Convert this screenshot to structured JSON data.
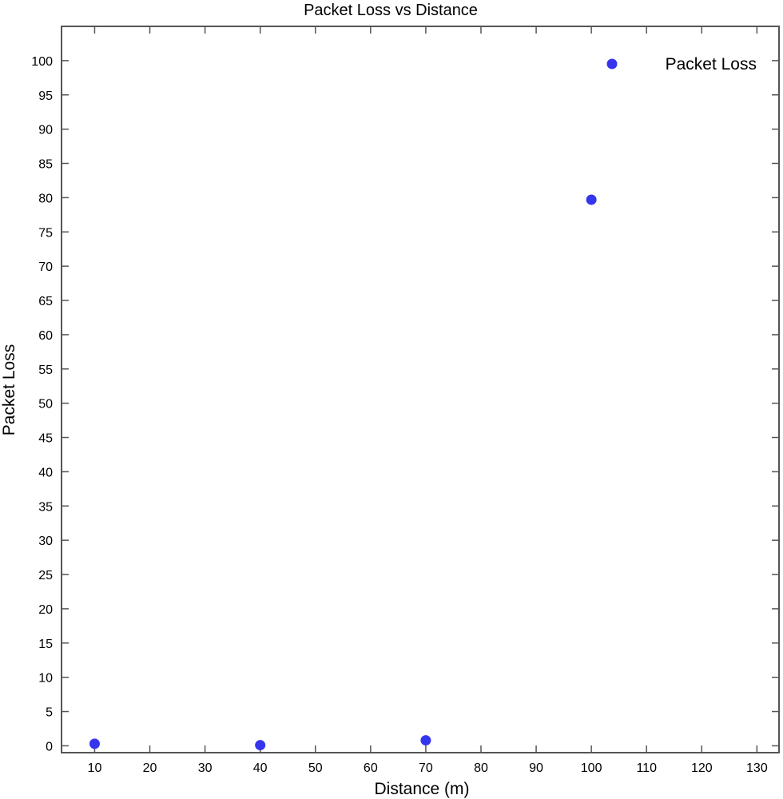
{
  "chart_data": {
    "type": "scatter",
    "title": "Packet Loss vs Distance",
    "xlabel": "Distance (m)",
    "ylabel": "Packet Loss",
    "xlim": [
      4,
      134
    ],
    "ylim": [
      -1,
      105
    ],
    "x_ticks": [
      10,
      20,
      30,
      40,
      50,
      60,
      70,
      80,
      90,
      100,
      110,
      120,
      130
    ],
    "y_ticks": [
      0,
      5,
      10,
      15,
      20,
      25,
      30,
      35,
      40,
      45,
      50,
      55,
      60,
      65,
      70,
      75,
      80,
      85,
      90,
      95,
      100
    ],
    "grid": false,
    "legend_position": "top-right",
    "series": [
      {
        "name": "Packet Loss",
        "color": "#3535ee",
        "marker": "circle",
        "x": [
          10,
          40,
          70,
          100
        ],
        "y": [
          0.3,
          0.1,
          0.8,
          79.7
        ]
      }
    ]
  }
}
